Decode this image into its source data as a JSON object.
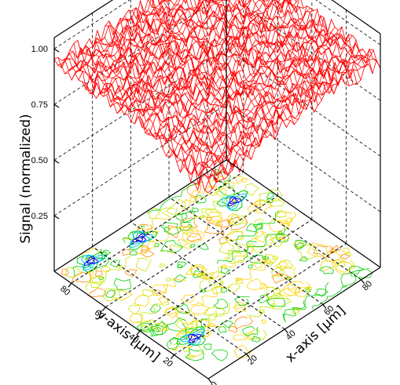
{
  "chart_data": {
    "type": "surface-3d",
    "zlabel": "Signal (normalized)",
    "xlabel": "x-axis [µm]",
    "ylabel": "y-axis [µm]",
    "x_ticks": [
      "0",
      "20",
      "40",
      "60",
      "80"
    ],
    "y_ticks": [
      "20",
      "40",
      "60",
      "80"
    ],
    "z_ticks": [
      "0.25",
      "0.50",
      "0.75",
      "1.00"
    ],
    "xlim": [
      0,
      90
    ],
    "ylim": [
      0,
      90
    ],
    "zlim": [
      0,
      1.05
    ],
    "surface": {
      "mean_level": 0.93,
      "noise_amplitude": 0.04,
      "dip_level_at_front_corner": 0.84,
      "color": "#ff0000"
    },
    "contour_projection": {
      "plane": "z=0",
      "colors": [
        "#0000ff",
        "#00c8ff",
        "#00d000",
        "#c8e600",
        "#ffd200",
        "#ff8c00"
      ],
      "low_spots": [
        {
          "x": 12,
          "y": 22
        },
        {
          "x": 76,
          "y": 70
        },
        {
          "x": 14,
          "y": 84
        },
        {
          "x": 36,
          "y": 80
        }
      ]
    }
  }
}
